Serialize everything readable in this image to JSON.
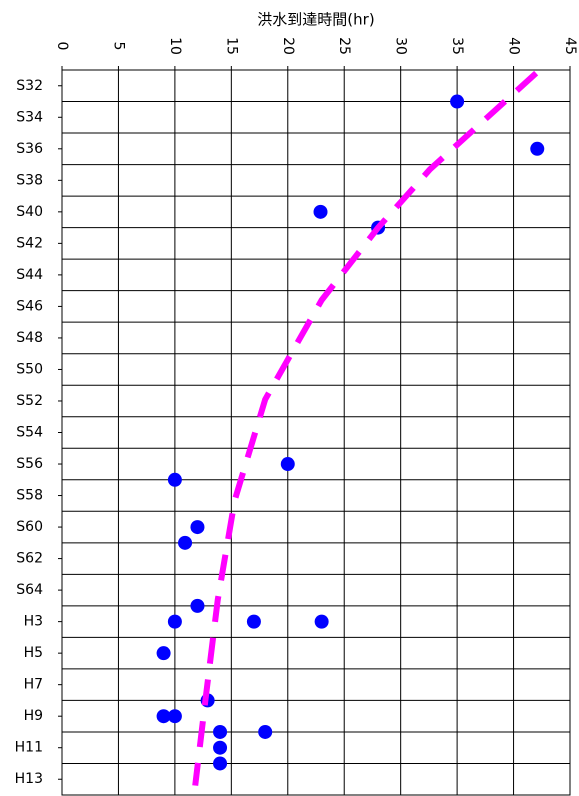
{
  "chart_data": {
    "type": "scatter",
    "x_label": "洪水到達時間(hr)",
    "xlim": [
      0,
      45
    ],
    "xticks": [
      0,
      5,
      10,
      15,
      20,
      25,
      30,
      35,
      40,
      45
    ],
    "ylim": [
      31,
      77
    ],
    "y_inverted": true,
    "yticks": [
      {
        "value": 32,
        "label": "S32"
      },
      {
        "value": 34,
        "label": "S34"
      },
      {
        "value": 36,
        "label": "S36"
      },
      {
        "value": 38,
        "label": "S38"
      },
      {
        "value": 40,
        "label": "S40"
      },
      {
        "value": 42,
        "label": "S42"
      },
      {
        "value": 44,
        "label": "S44"
      },
      {
        "value": 46,
        "label": "S46"
      },
      {
        "value": 48,
        "label": "S48"
      },
      {
        "value": 50,
        "label": "S50"
      },
      {
        "value": 52,
        "label": "S52"
      },
      {
        "value": 54,
        "label": "S54"
      },
      {
        "value": 56,
        "label": "S56"
      },
      {
        "value": 58,
        "label": "S58"
      },
      {
        "value": 60,
        "label": "S60"
      },
      {
        "value": 62,
        "label": "S62"
      },
      {
        "value": 64,
        "label": "S64"
      },
      {
        "value": 66,
        "label": "H3"
      },
      {
        "value": 68,
        "label": "H5"
      },
      {
        "value": 70,
        "label": "H7"
      },
      {
        "value": 72,
        "label": "H9"
      },
      {
        "value": 74,
        "label": "H11"
      },
      {
        "value": 76,
        "label": "H13"
      }
    ],
    "grid": true,
    "series": [
      {
        "type": "scatter",
        "color": "#0000ff",
        "x": [
          35,
          42.1,
          22.9,
          28,
          20,
          10,
          12,
          10.9,
          12,
          10,
          17,
          23,
          9,
          12.9,
          9,
          10,
          14,
          18,
          14,
          14
        ],
        "y": [
          33,
          36,
          40,
          41,
          56,
          57,
          60,
          61,
          65,
          66,
          66,
          66,
          68,
          71,
          72,
          72,
          73,
          73,
          74,
          75
        ]
      },
      {
        "type": "line",
        "color": "#ff00ff",
        "dashed": true,
        "x": [
          42,
          32.6,
          28,
          23,
          18,
          15.3,
          13.8,
          12.7,
          11.8
        ],
        "y": [
          31.2,
          37.3,
          41,
          45.6,
          51.9,
          58.3,
          64.6,
          71,
          76.4
        ]
      }
    ]
  }
}
